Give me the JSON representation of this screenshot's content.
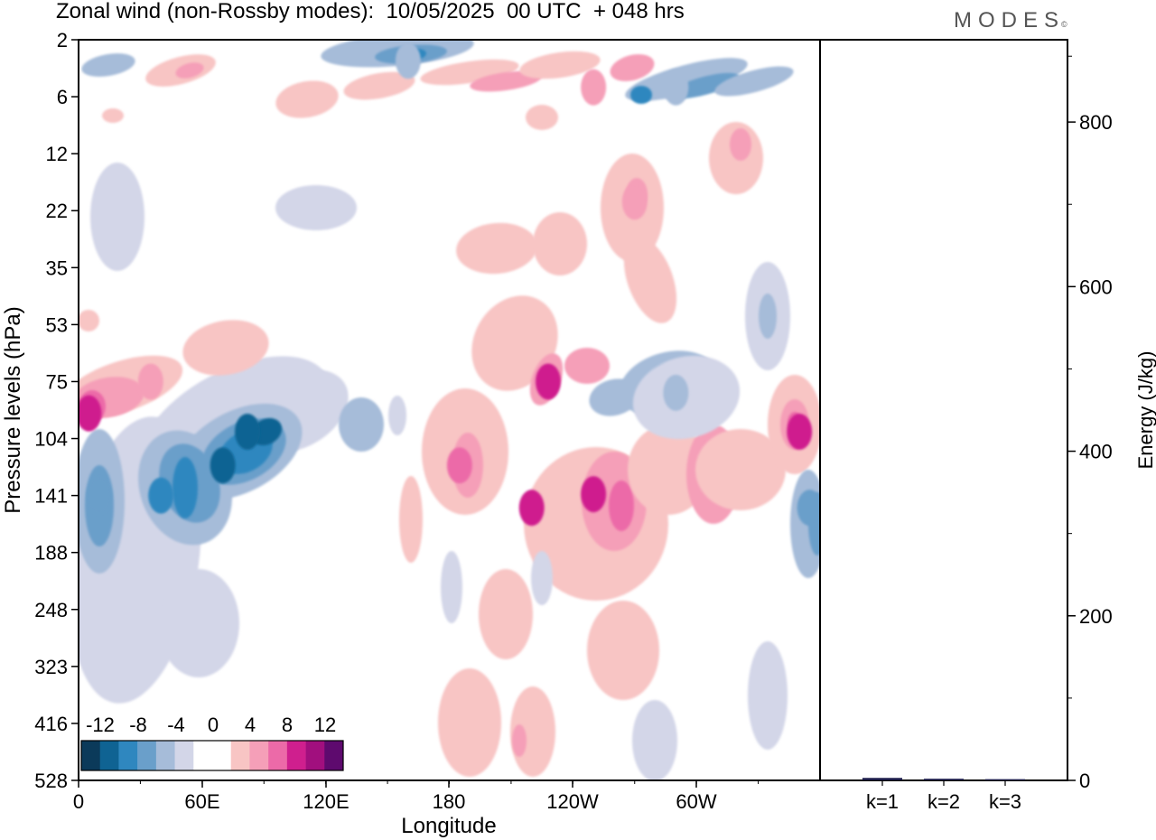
{
  "title": "Zonal wind (non-Rossby modes):  10/05/2025  00 UTC  + 048 hrs",
  "logo": "MODES",
  "logo_mark": "©",
  "chart_data": [
    {
      "type": "heatmap",
      "title": "Zonal wind (non-Rossby modes):  10/05/2025  00 UTC  + 048 hrs",
      "xlabel": "Longitude",
      "ylabel": "Pressure levels (hPa)",
      "x_ticks": [
        "0",
        "60E",
        "120E",
        "180",
        "120W",
        "60W"
      ],
      "y_ticks": [
        "2",
        "6",
        "12",
        "22",
        "35",
        "53",
        "75",
        "104",
        "141",
        "188",
        "248",
        "323",
        "416",
        "528"
      ],
      "colorbar": {
        "labels": [
          "-12",
          "-8",
          "-4",
          "0",
          "4",
          "8",
          "12"
        ],
        "colors": [
          "#0b3a5a",
          "#0f6393",
          "#2f87bf",
          "#6a9fca",
          "#a6bcd9",
          "#d3d6e8",
          "#ffffff",
          "#ffffff",
          "#f8c5c4",
          "#f59fb8",
          "#ec6aa8",
          "#cf1f8e",
          "#a10f7e",
          "#5e0a6e"
        ]
      },
      "features": [
        {
          "lon": 10,
          "level": 141,
          "value": -7
        },
        {
          "lon": 40,
          "level": 141,
          "value": -10
        },
        {
          "lon": 70,
          "level": 120,
          "value": -11
        },
        {
          "lon": 82,
          "level": 100,
          "value": -12
        },
        {
          "lon": 5,
          "level": 90,
          "value": 9
        },
        {
          "lon": 35,
          "level": 75,
          "value": 5
        },
        {
          "lon": 185,
          "level": 120,
          "value": 7
        },
        {
          "lon": 220,
          "level": 150,
          "value": 9
        },
        {
          "lon": 228,
          "level": 75,
          "value": 8
        },
        {
          "lon": 250,
          "level": 140,
          "value": 9
        },
        {
          "lon": 290,
          "level": 80,
          "value": -6
        },
        {
          "lon": 350,
          "level": 100,
          "value": 9
        },
        {
          "lon": 355,
          "level": 150,
          "value": -7
        },
        {
          "lon": 160,
          "level": 3,
          "value": -6
        },
        {
          "lon": 290,
          "level": 5,
          "value": -6
        },
        {
          "lon": 250,
          "level": 5,
          "value": 5
        },
        {
          "lon": 270,
          "level": 20,
          "value": 4
        }
      ]
    },
    {
      "type": "bar",
      "categories": [
        "k=1",
        "k=2",
        "k=3"
      ],
      "values": [
        3,
        2,
        1.5
      ],
      "ylabel": "Energy (J/kg)",
      "ylim": [
        0,
        900
      ],
      "y_ticks": [
        0,
        200,
        400,
        600,
        800
      ],
      "bar_color": "#1c1c4a"
    }
  ]
}
